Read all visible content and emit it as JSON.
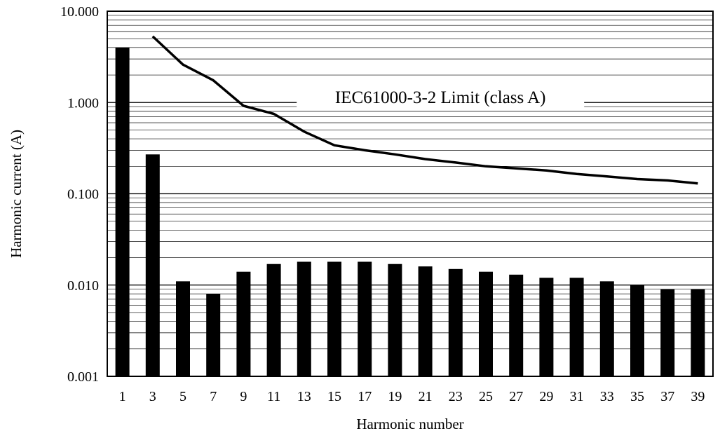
{
  "chart_data": {
    "type": "bar",
    "xlabel": "Harmonic number",
    "ylabel": "Harmonic current (A)",
    "y_scale": "log",
    "ylim": [
      0.001,
      10
    ],
    "y_tick_labels": [
      "10.000",
      "1.000",
      "0.100",
      "0.010",
      "0.001"
    ],
    "y_tick_values": [
      10,
      1,
      0.1,
      0.01,
      0.001
    ],
    "grid": true,
    "categories": [
      "1",
      "3",
      "5",
      "7",
      "9",
      "11",
      "13",
      "15",
      "17",
      "19",
      "21",
      "23",
      "25",
      "27",
      "29",
      "31",
      "33",
      "35",
      "37",
      "39"
    ],
    "series": [
      {
        "values": [
          4.0,
          0.27,
          0.011,
          0.008,
          0.014,
          0.017,
          0.018,
          0.018,
          0.018,
          0.017,
          0.016,
          0.015,
          0.014,
          0.013,
          0.012,
          0.012,
          0.011,
          0.01,
          0.009,
          0.009
        ],
        "color": "#000000"
      },
      {
        "name": "IEC61000-3-2 Limit (class A)",
        "type": "line",
        "x": [
          "3",
          "5",
          "7",
          "9",
          "11",
          "13",
          "15",
          "17",
          "19",
          "21",
          "23",
          "25",
          "27",
          "29",
          "31",
          "33",
          "35",
          "37",
          "39"
        ],
        "values": [
          5.3,
          2.6,
          1.75,
          0.92,
          0.75,
          0.48,
          0.34,
          0.3,
          0.27,
          0.24,
          0.22,
          0.2,
          0.19,
          0.18,
          0.165,
          0.155,
          0.145,
          0.14,
          0.13
        ],
        "color": "#000000"
      }
    ],
    "annotations": [
      {
        "text": "IEC61000-3-2 Limit (class A)",
        "anchor": "limit-line"
      }
    ]
  }
}
